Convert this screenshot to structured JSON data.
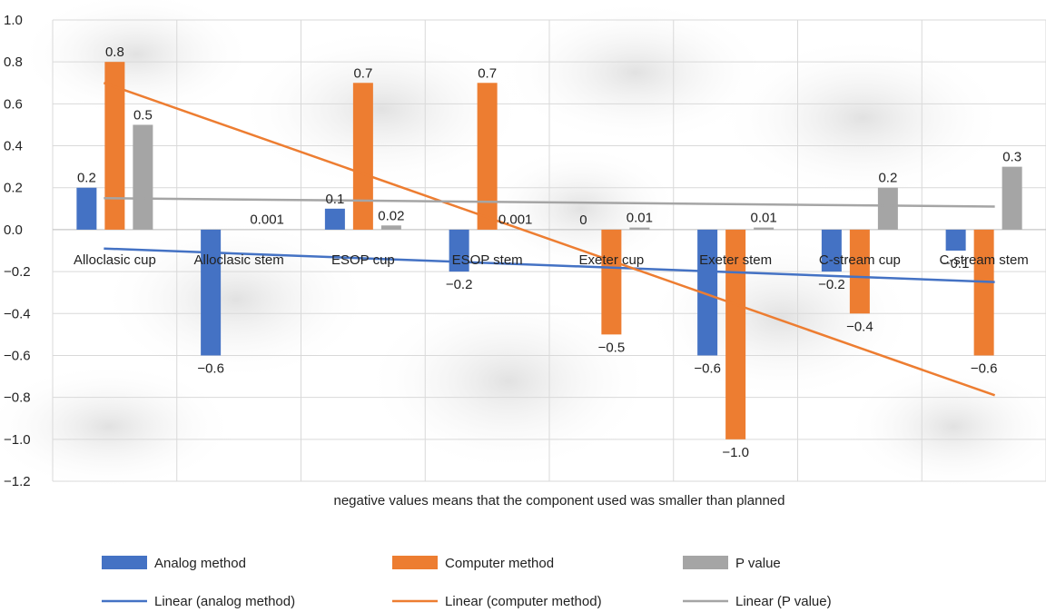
{
  "chart_data": {
    "type": "bar",
    "categories": [
      "Alloclasic cup",
      "Alloclasic stem",
      "ESOP cup",
      "ESOP stem",
      "Exeter cup",
      "Exeter stem",
      "C-stream cup",
      "C-stream stem"
    ],
    "series": [
      {
        "name": "Analog method",
        "values": [
          0.2,
          -0.6,
          0.1,
          -0.2,
          0,
          -0.6,
          -0.2,
          -0.1
        ],
        "labels": [
          "0.2",
          "−0.6",
          "0.1",
          "−0.2",
          "0",
          "−0.6",
          "−0.2",
          "−0.1"
        ],
        "color": "#4472C4"
      },
      {
        "name": "Computer method",
        "values": [
          0.8,
          0,
          0.7,
          0.7,
          -0.5,
          -1.0,
          -0.4,
          -0.6
        ],
        "labels": [
          "0.8",
          "",
          "0.7",
          "0.7",
          "−0.5",
          "−1.0",
          "−0.4",
          "−0.6"
        ],
        "color": "#ED7D31"
      },
      {
        "name": "P value",
        "values": [
          0.5,
          0.001,
          0.02,
          0.001,
          0.01,
          0.01,
          0.2,
          0.3
        ],
        "labels": [
          "0.5",
          "0.001",
          "0.02",
          "0.001",
          "0.01",
          "0.01",
          "0.2",
          "0.3"
        ],
        "color": "#A5A5A5"
      }
    ],
    "trendlines": [
      {
        "name": "Linear (analog method)",
        "type": "linear",
        "start": -0.09,
        "end": -0.25,
        "color": "#4472C4"
      },
      {
        "name": "Linear (computer method)",
        "type": "linear",
        "start": 0.7,
        "end": -0.79,
        "color": "#ED7D31"
      },
      {
        "name": "Linear (P value)",
        "type": "linear",
        "start": 0.15,
        "end": 0.11,
        "color": "#A5A5A5"
      }
    ],
    "y_ticks": [
      "1.0",
      "0.8",
      "0.6",
      "0.4",
      "0.2",
      "0.0",
      "−0.2",
      "−0.4",
      "−0.6",
      "−0.8",
      "−1.0",
      "−1.2"
    ],
    "ylim": [
      -1.2,
      1.0
    ],
    "xlabel": "negative values means that the component used was smaller than planned",
    "grid": true,
    "legend_position": "bottom"
  }
}
